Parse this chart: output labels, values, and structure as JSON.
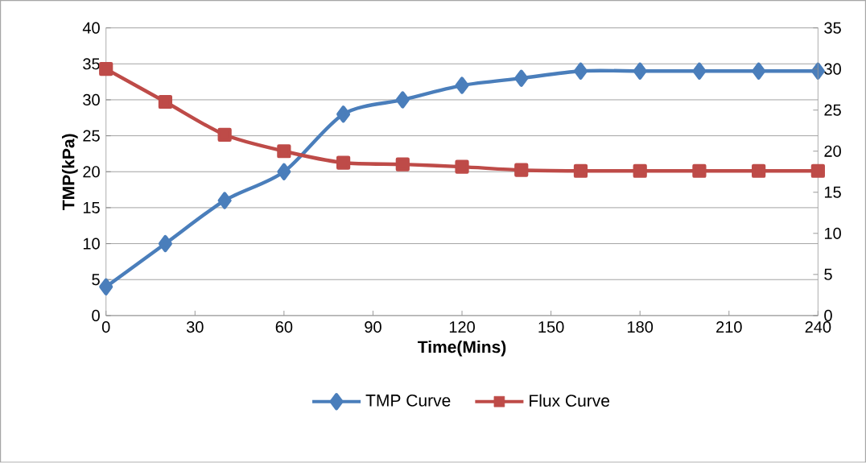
{
  "chart_data": {
    "type": "line",
    "xlabel": "Time(Mins)",
    "ylabel": "TMP(kPa)",
    "x": [
      0,
      20,
      40,
      60,
      80,
      100,
      120,
      140,
      160,
      180,
      200,
      220,
      240
    ],
    "series": [
      {
        "name": "TMP Curve",
        "color": "#4a7ebb",
        "marker": "diamond",
        "values": [
          4,
          10,
          16,
          20,
          28,
          30,
          32,
          33,
          34,
          34,
          34,
          34,
          34
        ]
      },
      {
        "name": "Flux Curve",
        "color": "#be4b48",
        "marker": "square",
        "axis": "y2",
        "values": [
          30,
          26,
          22,
          20,
          18.6,
          18.4,
          18.1,
          17.7,
          17.6,
          17.6,
          17.6,
          17.6,
          17.6
        ]
      }
    ],
    "xlim": [
      0,
      240
    ],
    "xticks": [
      0,
      30,
      60,
      90,
      120,
      150,
      180,
      210,
      240
    ],
    "ylim": [
      0,
      40
    ],
    "yticks": [
      0,
      5,
      10,
      15,
      20,
      25,
      30,
      35,
      40
    ],
    "y2lim": [
      0,
      35
    ],
    "y2ticks": [
      0,
      5,
      10,
      15,
      20,
      25,
      30,
      35
    ],
    "grid": "y",
    "legend": "bottom",
    "line_style": "solid"
  }
}
